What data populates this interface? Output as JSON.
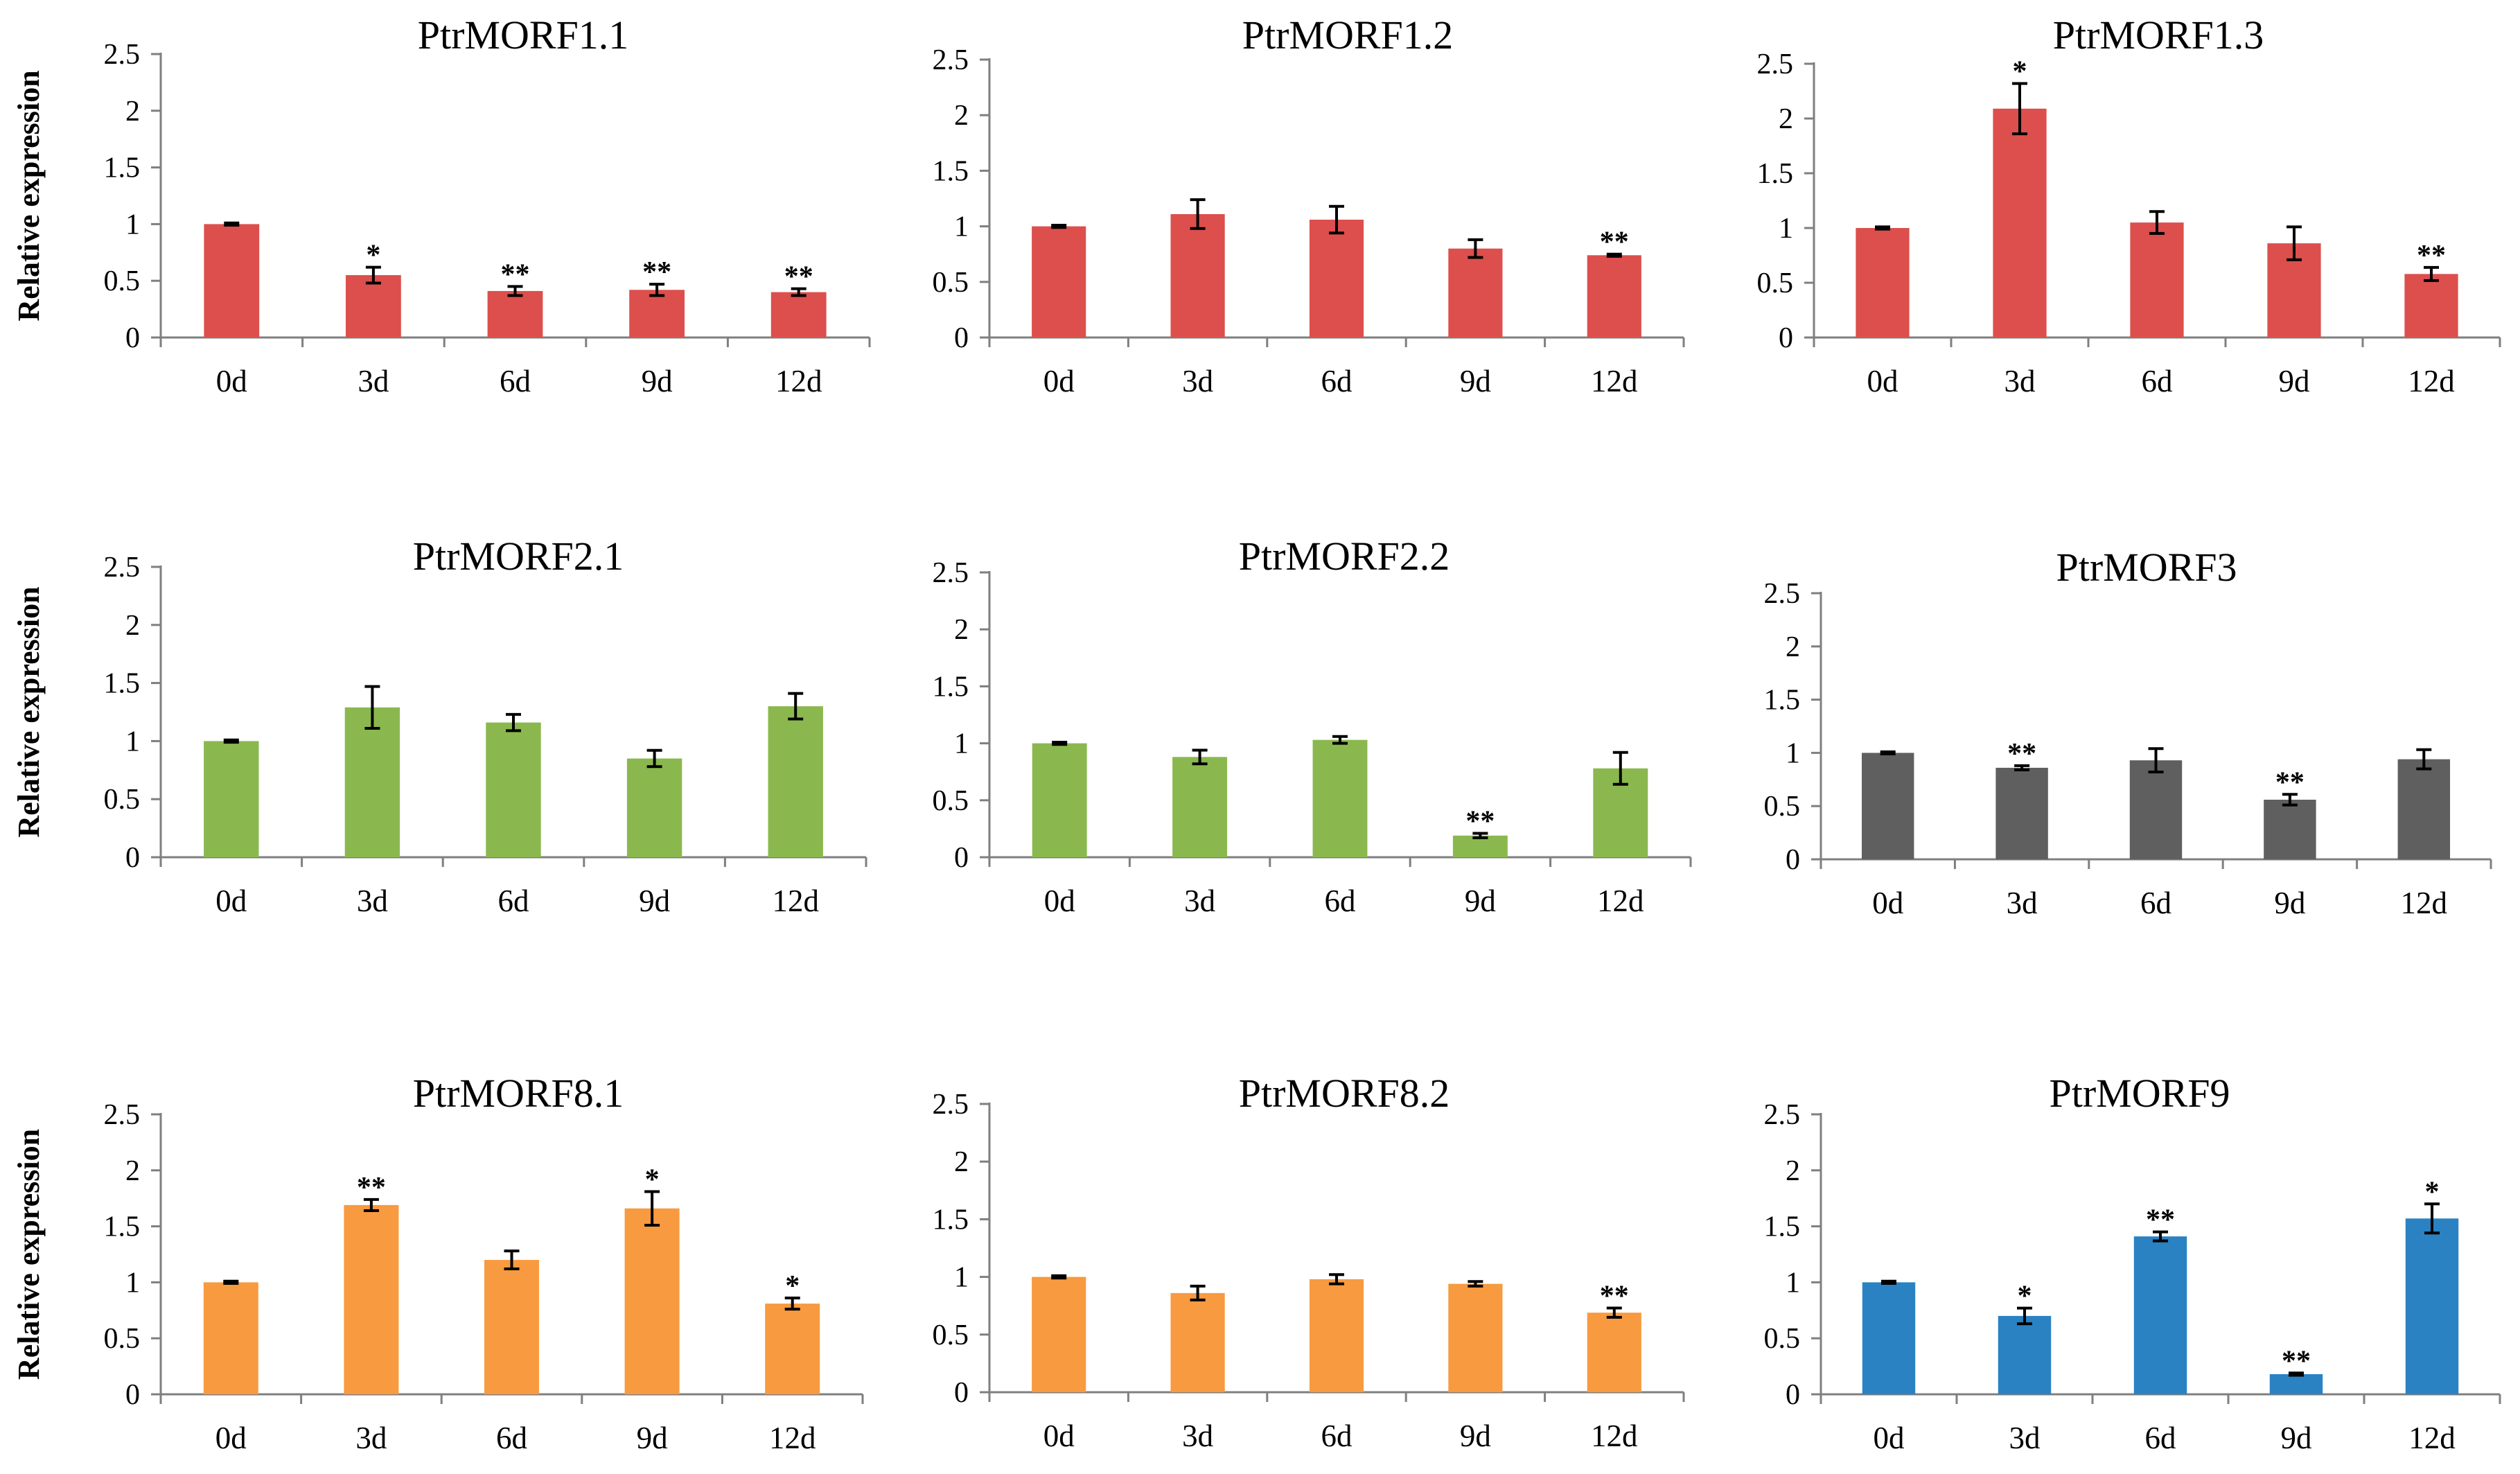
{
  "figure": {
    "ylabel": "Relative expression"
  },
  "colors": {
    "red": "#dc4f4c",
    "green": "#8ab84e",
    "gray": "#5f5f5f",
    "orange": "#f89a3f",
    "blue": "#2a82c3"
  },
  "chart_data": [
    {
      "type": "bar",
      "title": "PtrMORF1.1",
      "categories": [
        "0d",
        "3d",
        "6d",
        "9d",
        "12d"
      ],
      "values": [
        1.0,
        0.55,
        0.41,
        0.42,
        0.4
      ],
      "errors": [
        0.01,
        0.07,
        0.04,
        0.05,
        0.03
      ],
      "significance": [
        "",
        "*",
        "**",
        "**",
        "**"
      ],
      "ylim": [
        0,
        2.5
      ],
      "yticks": [
        "0",
        "0.5",
        "1",
        "1.5",
        "2",
        "2.5"
      ],
      "ylabel": "Relative expression",
      "color": "red"
    },
    {
      "type": "bar",
      "title": "PtrMORF1.2",
      "categories": [
        "0d",
        "3d",
        "6d",
        "9d",
        "12d"
      ],
      "values": [
        1.0,
        1.11,
        1.06,
        0.8,
        0.74
      ],
      "errors": [
        0.01,
        0.13,
        0.12,
        0.08,
        0.01
      ],
      "significance": [
        "",
        "",
        "",
        "",
        "**"
      ],
      "ylim": [
        0,
        2.5
      ],
      "yticks": [
        "0",
        "0.5",
        "1",
        "1.5",
        "2",
        "2.5"
      ],
      "ylabel": "",
      "color": "red"
    },
    {
      "type": "bar",
      "title": "PtrMORF1.3",
      "categories": [
        "0d",
        "3d",
        "6d",
        "9d",
        "12d"
      ],
      "values": [
        1.0,
        2.09,
        1.05,
        0.86,
        0.58
      ],
      "errors": [
        0.01,
        0.23,
        0.1,
        0.15,
        0.06
      ],
      "significance": [
        "",
        "*",
        "",
        "",
        "**"
      ],
      "ylim": [
        0,
        2.5
      ],
      "yticks": [
        "0",
        "0.5",
        "1",
        "1.5",
        "2",
        "2.5"
      ],
      "ylabel": "",
      "color": "red"
    },
    {
      "type": "bar",
      "title": "PtrMORF2.1",
      "categories": [
        "0d",
        "3d",
        "6d",
        "9d",
        "12d"
      ],
      "values": [
        1.0,
        1.29,
        1.16,
        0.85,
        1.3
      ],
      "errors": [
        0.01,
        0.18,
        0.07,
        0.07,
        0.11
      ],
      "significance": [
        "",
        "",
        "",
        "",
        ""
      ],
      "ylim": [
        0,
        2.5
      ],
      "yticks": [
        "0",
        "0.5",
        "1",
        "1.5",
        "2",
        "2.5"
      ],
      "ylabel": "Relative expression",
      "color": "green"
    },
    {
      "type": "bar",
      "title": "PtrMORF2.2",
      "categories": [
        "0d",
        "3d",
        "6d",
        "9d",
        "12d"
      ],
      "values": [
        1.0,
        0.88,
        1.03,
        0.19,
        0.78
      ],
      "errors": [
        0.01,
        0.06,
        0.03,
        0.02,
        0.14
      ],
      "significance": [
        "",
        "",
        "",
        "**",
        ""
      ],
      "ylim": [
        0,
        2.5
      ],
      "yticks": [
        "0",
        "0.5",
        "1",
        "1.5",
        "2",
        "2.5"
      ],
      "ylabel": "",
      "color": "green"
    },
    {
      "type": "bar",
      "title": "PtrMORF3",
      "categories": [
        "0d",
        "3d",
        "6d",
        "9d",
        "12d"
      ],
      "values": [
        1.0,
        0.86,
        0.93,
        0.56,
        0.94
      ],
      "errors": [
        0.01,
        0.02,
        0.11,
        0.05,
        0.09
      ],
      "significance": [
        "",
        "**",
        "",
        "**",
        ""
      ],
      "ylim": [
        0,
        2.5
      ],
      "yticks": [
        "0",
        "0.5",
        "1",
        "1.5",
        "2",
        "2.5"
      ],
      "ylabel": "",
      "color": "gray"
    },
    {
      "type": "bar",
      "title": "PtrMORF8.1",
      "categories": [
        "0d",
        "3d",
        "6d",
        "9d",
        "12d"
      ],
      "values": [
        1.0,
        1.69,
        1.2,
        1.66,
        0.81
      ],
      "errors": [
        0.01,
        0.05,
        0.08,
        0.15,
        0.05
      ],
      "significance": [
        "",
        "**",
        "",
        "*",
        "*"
      ],
      "ylim": [
        0,
        2.5
      ],
      "yticks": [
        "0",
        "0.5",
        "1",
        "1.5",
        "2",
        "2.5"
      ],
      "ylabel": "Relative expression",
      "color": "orange"
    },
    {
      "type": "bar",
      "title": "PtrMORF8.2",
      "categories": [
        "0d",
        "3d",
        "6d",
        "9d",
        "12d"
      ],
      "values": [
        1.0,
        0.86,
        0.98,
        0.94,
        0.69
      ],
      "errors": [
        0.01,
        0.06,
        0.04,
        0.02,
        0.04
      ],
      "significance": [
        "",
        "",
        "",
        "",
        "**"
      ],
      "ylim": [
        0,
        2.5
      ],
      "yticks": [
        "0",
        "0.5",
        "1",
        "1.5",
        "2",
        "2.5"
      ],
      "ylabel": "",
      "color": "orange"
    },
    {
      "type": "bar",
      "title": "PtrMORF9",
      "categories": [
        "0d",
        "3d",
        "6d",
        "9d",
        "12d"
      ],
      "values": [
        1.0,
        0.7,
        1.41,
        0.18,
        1.57
      ],
      "errors": [
        0.01,
        0.07,
        0.04,
        0.01,
        0.13
      ],
      "significance": [
        "",
        "*",
        "**",
        "**",
        "*"
      ],
      "ylim": [
        0,
        2.5
      ],
      "yticks": [
        "0",
        "0.5",
        "1",
        "1.5",
        "2",
        "2.5"
      ],
      "ylabel": "",
      "color": "blue"
    }
  ]
}
